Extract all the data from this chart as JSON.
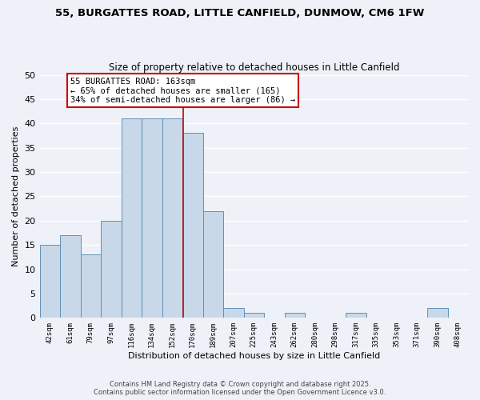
{
  "title1": "55, BURGATTES ROAD, LITTLE CANFIELD, DUNMOW, CM6 1FW",
  "title2": "Size of property relative to detached houses in Little Canfield",
  "xlabel": "Distribution of detached houses by size in Little Canfield",
  "ylabel": "Number of detached properties",
  "bin_labels": [
    "42sqm",
    "61sqm",
    "79sqm",
    "97sqm",
    "116sqm",
    "134sqm",
    "152sqm",
    "170sqm",
    "189sqm",
    "207sqm",
    "225sqm",
    "243sqm",
    "262sqm",
    "280sqm",
    "298sqm",
    "317sqm",
    "335sqm",
    "353sqm",
    "371sqm",
    "390sqm",
    "408sqm"
  ],
  "bar_values": [
    15,
    17,
    13,
    20,
    41,
    41,
    41,
    38,
    22,
    2,
    1,
    0,
    1,
    0,
    0,
    1,
    0,
    0,
    0,
    2,
    0
  ],
  "bar_color": "#c8d8e8",
  "bar_edge_color": "#6090b8",
  "ylim": [
    0,
    50
  ],
  "yticks": [
    0,
    5,
    10,
    15,
    20,
    25,
    30,
    35,
    40,
    45,
    50
  ],
  "annotation_title": "55 BURGATTES ROAD: 163sqm",
  "annotation_line1": "← 65% of detached houses are smaller (165)",
  "annotation_line2": "34% of semi-detached houses are larger (86) →",
  "vline_x_index": 6.55,
  "footer1": "Contains HM Land Registry data © Crown copyright and database right 2025.",
  "footer2": "Contains public sector information licensed under the Open Government Licence v3.0.",
  "background_color": "#eef2f8",
  "grid_color": "#ffffff",
  "annotation_box_color": "#ffffff",
  "annotation_box_edge": "#cc0000",
  "vline_color": "#cc0000"
}
